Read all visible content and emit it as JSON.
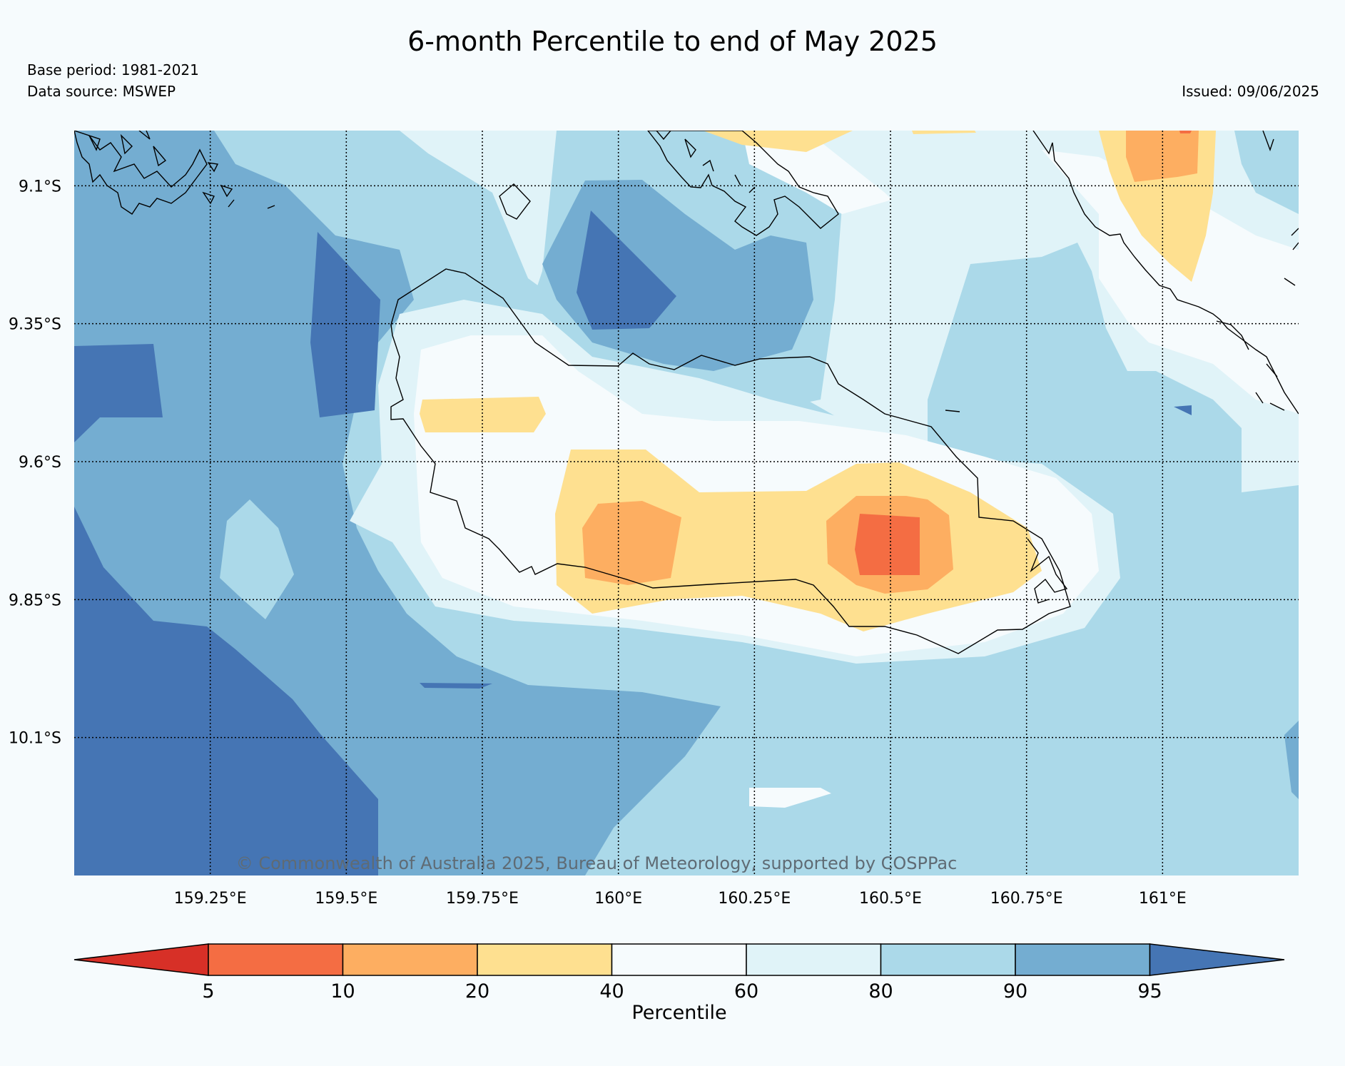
{
  "title": "6-month Percentile to end of May 2025",
  "base_period": "Base period: 1981-2021",
  "data_source": "Data source: MSWEP",
  "issued": "Issued: 09/06/2025",
  "copyright": "© Commonwealth of Australia 2025, Bureau of Meteorology, supported by COSPPac",
  "map": {
    "lon_range": [
      159.0,
      161.25
    ],
    "lat_range": [
      -10.35,
      -9.0
    ],
    "lon_ticks": [
      {
        "value": 159.25,
        "label": "159.25°E"
      },
      {
        "value": 159.5,
        "label": "159.5°E"
      },
      {
        "value": 159.75,
        "label": "159.75°E"
      },
      {
        "value": 160.0,
        "label": "160°E"
      },
      {
        "value": 160.25,
        "label": "160.25°E"
      },
      {
        "value": 160.5,
        "label": "160.5°E"
      },
      {
        "value": 160.75,
        "label": "160.75°E"
      },
      {
        "value": 161.0,
        "label": "161°E"
      }
    ],
    "lat_ticks": [
      {
        "value": -9.1,
        "label": "9.1°S"
      },
      {
        "value": -9.35,
        "label": "9.35°S"
      },
      {
        "value": -9.6,
        "label": "9.6°S"
      },
      {
        "value": -9.85,
        "label": "9.85°S"
      },
      {
        "value": -10.1,
        "label": "10.1°S"
      }
    ],
    "gridlines": "dotted"
  },
  "colorbar": {
    "label": "Percentile",
    "ticks": [
      "5",
      "10",
      "20",
      "40",
      "60",
      "80",
      "90",
      "95"
    ],
    "bins": [
      {
        "range": "<5",
        "color": "#d73027"
      },
      {
        "range": "5-10",
        "color": "#f46d43"
      },
      {
        "range": "10-20",
        "color": "#fdae61"
      },
      {
        "range": "20-40",
        "color": "#fee090"
      },
      {
        "range": "40-60",
        "color": "#f6fbfd"
      },
      {
        "range": "60-80",
        "color": "#e0f3f8"
      },
      {
        "range": "80-90",
        "color": "#abd9e9"
      },
      {
        "range": "90-95",
        "color": "#74add1"
      },
      {
        "range": ">95",
        "color": "#4575b4"
      }
    ]
  }
}
